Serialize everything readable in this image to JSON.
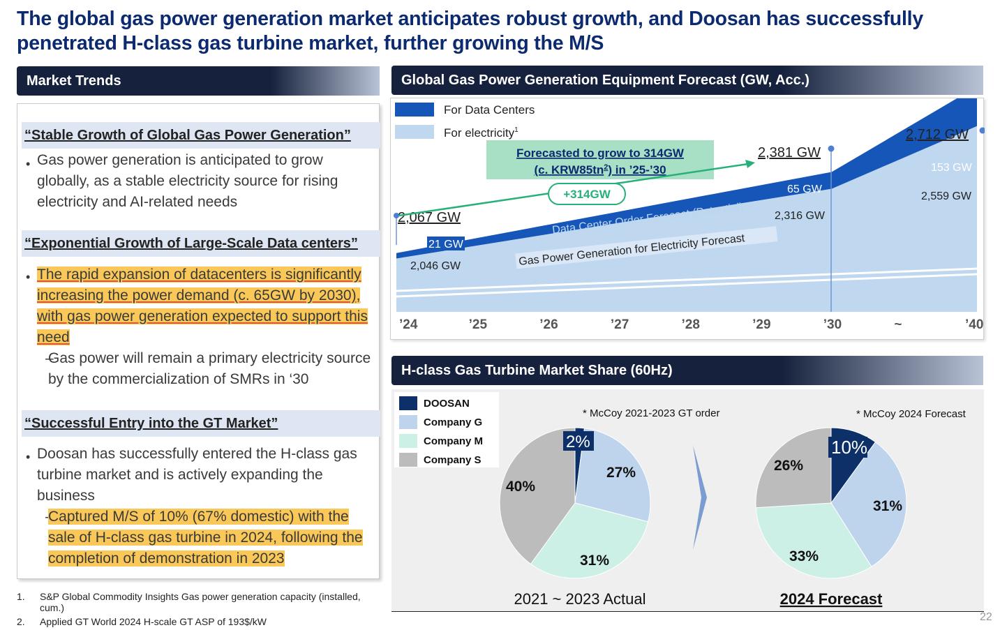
{
  "title": "The global gas power generation market anticipates robust growth, and Doosan has successfully penetrated H-class gas turbine market, further growing the M/S",
  "left": {
    "header": "Market Trends",
    "sections": [
      {
        "heading": "“Stable Growth of Global Gas Power Generation”",
        "bullet": "Gas power generation is anticipated to grow globally, as a stable electricity source for rising electricity and AI-related needs"
      },
      {
        "heading": "“Exponential Growth of Large-Scale Data centers”",
        "bullet_hl": "The rapid expansion of datacenters is significantly increasing the power demand (c. 65GW by 2030), with gas power generation expected to support this need",
        "sub": "Gas power will remain a primary electricity source by the commercialization of SMRs in ‘30"
      },
      {
        "heading": "“Successful Entry into the GT Market”",
        "bullet": "Doosan has successfully entered the H-class gas turbine market and is actively expanding the business",
        "sub_hl": "Captured M/S of 10%  (67% domestic) with the sale of H-class gas turbine in 2024, following the completion of demonstration in 2023"
      }
    ],
    "bullet_glyph": "•",
    "dash_glyph": "–"
  },
  "footnotes": [
    {
      "num": "1.",
      "text": "S&P Global Commodity Insights Gas power generation capacity (installed, cum.)"
    },
    {
      "num": "2.",
      "text": "Applied GT World 2024 H-scale GT ASP of 193$/kW"
    }
  ],
  "page_number": "22",
  "chart_data": [
    {
      "type": "area",
      "title": "Global Gas Power Generation Equipment Forecast (GW, Acc.)",
      "legend": [
        {
          "label": "For Data Centers",
          "color": "#1556b8"
        },
        {
          "label": "For electricity",
          "sup": "1",
          "color": "#bcd6ef"
        }
      ],
      "categories": [
        "’24",
        "’25",
        "’26",
        "’27",
        "’28",
        "’29",
        "’30",
        "~",
        "’40"
      ],
      "series": [
        {
          "name": "For electricity",
          "points": [
            {
              "x": "’24",
              "y": 2046
            },
            {
              "x": "’30",
              "y": 2316
            },
            {
              "x": "’40",
              "y": 2559
            }
          ]
        },
        {
          "name": "For Data Centers",
          "points": [
            {
              "x": "’24",
              "y": 21
            },
            {
              "x": "’30",
              "y": 65
            },
            {
              "x": "’40",
              "y": 153
            }
          ]
        }
      ],
      "labels": {
        "total_24": "2,067 GW",
        "total_30": "2,381 GW",
        "total_40": "2,712 GW",
        "dc_24": "21 GW",
        "dc_30": "65 GW",
        "dc_40": "153 GW",
        "el_24": "2,046 GW",
        "el_30": "2,316 GW",
        "el_40": "2,559 GW",
        "band_dc": "Data Center Order Forecast (Potential)",
        "band_el": "Gas Power Generation for Electricity Forecast",
        "callout_line1": "Forecasted to grow to 314GW",
        "callout_line2a": "(c. KRW85tn",
        "callout_sup": "2",
        "callout_line2b": ") in ’25-’30",
        "growth": "+314GW"
      }
    },
    {
      "type": "pie",
      "title": "H-class Gas Turbine Market Share (60Hz)",
      "legend": [
        {
          "label": "DOOSAN",
          "color": "#0d3068"
        },
        {
          "label": "Company G",
          "color": "#bed3ec"
        },
        {
          "label": "Company M",
          "color": "#ccefe6"
        },
        {
          "label": "Company S",
          "color": "#bcbcbc"
        }
      ],
      "pies": [
        {
          "caption": "2021 ~ 2023 Actual",
          "note": "* McCoy 2021-2023 GT order",
          "slices": [
            {
              "label": "DOOSAN",
              "value": 2,
              "text": "2%"
            },
            {
              "label": "Company G",
              "value": 27,
              "text": "27%"
            },
            {
              "label": "Company M",
              "value": 31,
              "text": "31%"
            },
            {
              "label": "Company S",
              "value": 40,
              "text": "40%"
            }
          ]
        },
        {
          "caption": "2024 Forecast",
          "note": "* McCoy 2024 Forecast",
          "slices": [
            {
              "label": "DOOSAN",
              "value": 10,
              "text": "10%"
            },
            {
              "label": "Company G",
              "value": 31,
              "text": "31%"
            },
            {
              "label": "Company M",
              "value": 33,
              "text": "33%"
            },
            {
              "label": "Company S",
              "value": 26,
              "text": "26%"
            }
          ]
        }
      ]
    }
  ]
}
